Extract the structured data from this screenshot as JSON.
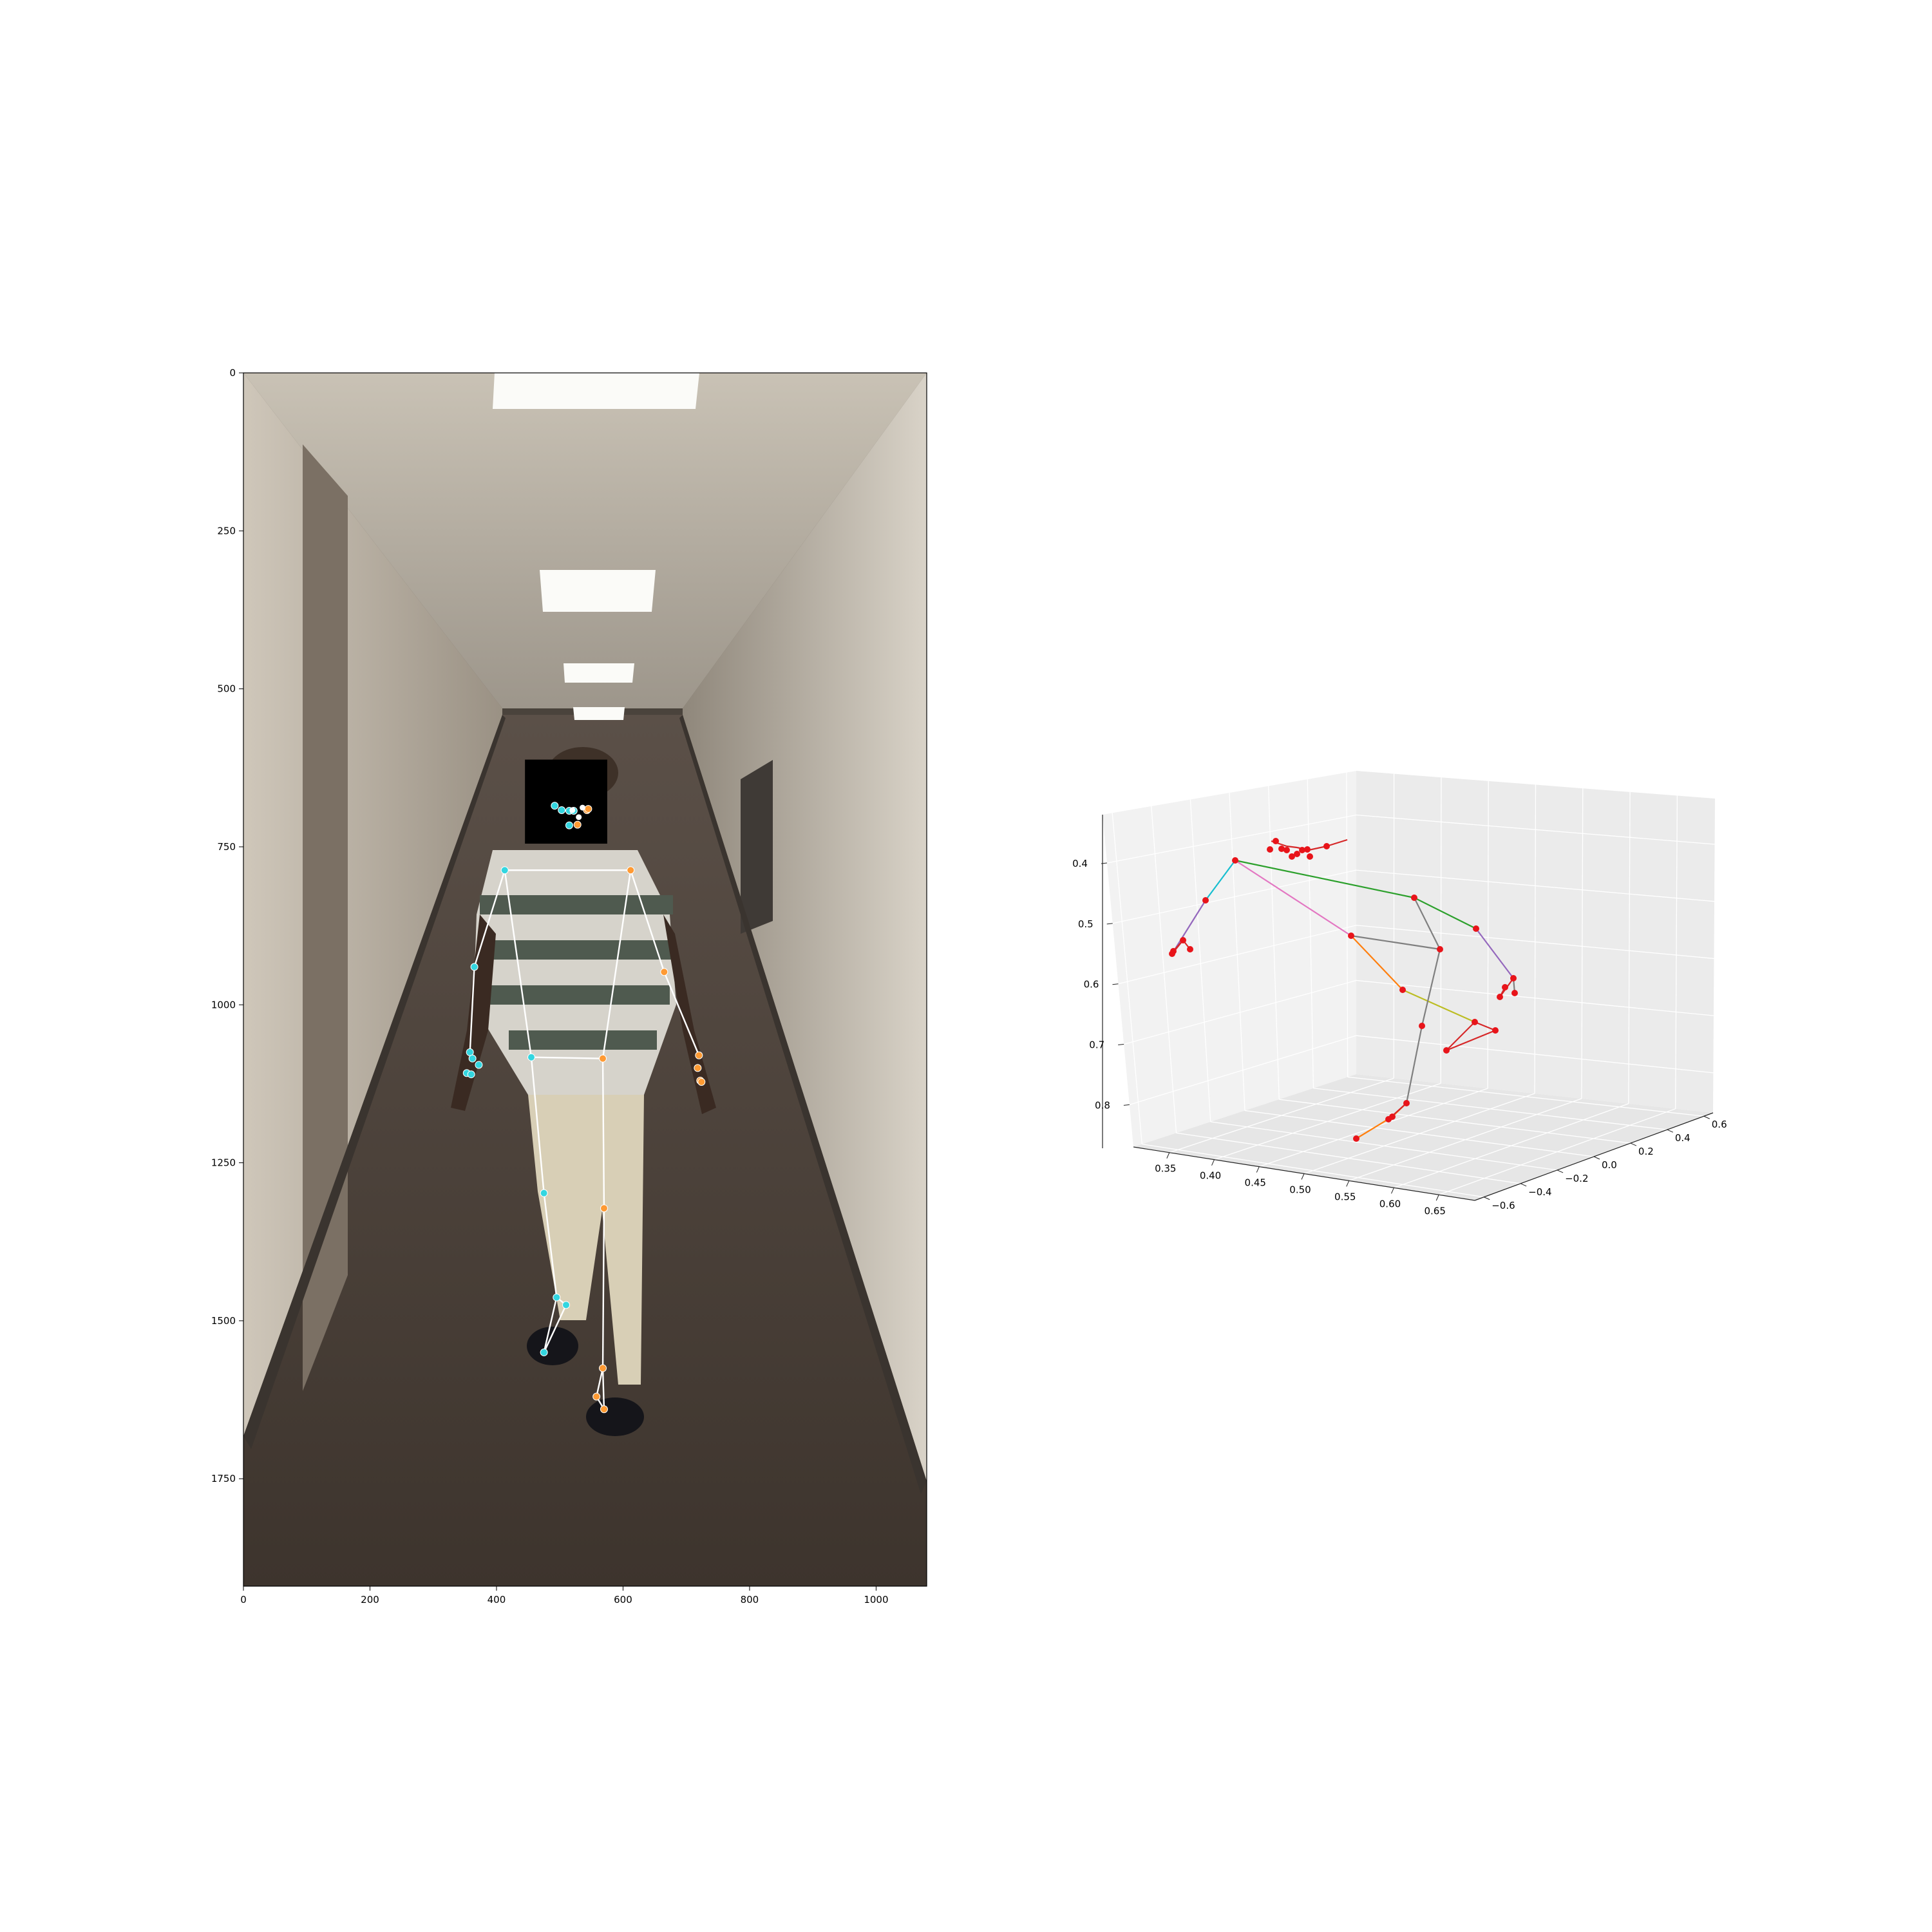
{
  "chart_data": [
    {
      "type": "scatter",
      "xlim": [
        0,
        1080
      ],
      "ylim": [
        1920,
        0
      ],
      "xticks": [
        {
          "value": 0,
          "label": "0"
        },
        {
          "value": 200,
          "label": "200"
        },
        {
          "value": 400,
          "label": "400"
        },
        {
          "value": 600,
          "label": "600"
        },
        {
          "value": 800,
          "label": "800"
        },
        {
          "value": 1000,
          "label": "1000"
        }
      ],
      "yticks": [
        {
          "value": 0,
          "label": "0"
        },
        {
          "value": 250,
          "label": "250"
        },
        {
          "value": 500,
          "label": "500"
        },
        {
          "value": 750,
          "label": "750"
        },
        {
          "value": 1000,
          "label": "1000"
        },
        {
          "value": 1250,
          "label": "1250"
        },
        {
          "value": 1500,
          "label": "1500"
        },
        {
          "value": 1750,
          "label": "1750"
        }
      ],
      "background": "video frame: corridor with a walking person, face redacted by black box",
      "redaction_box": {
        "x": [
          445,
          575
        ],
        "y": [
          612,
          745
        ],
        "color": "#000000"
      },
      "skeleton_color": "#ffffff",
      "left_color": "#33d6e0",
      "right_color": "#ff9a33",
      "joints": {
        "r_shoulder": [
          413,
          787
        ],
        "l_shoulder": [
          612,
          787
        ],
        "r_elbow": [
          365,
          940
        ],
        "l_elbow": [
          665,
          948
        ],
        "r_wrist": [
          358,
          1075
        ],
        "l_wrist": [
          720,
          1080
        ],
        "r_hip": [
          455,
          1083
        ],
        "l_hip": [
          568,
          1085
        ],
        "r_knee": [
          475,
          1298
        ],
        "l_knee": [
          570,
          1322
        ],
        "r_ankle": [
          495,
          1463
        ],
        "l_ankle": [
          568,
          1575
        ],
        "r_heel": [
          475,
          1550
        ],
        "l_heel": [
          558,
          1620
        ],
        "r_toe": [
          510,
          1475
        ],
        "l_toe": [
          570,
          1640
        ]
      },
      "bones": [
        [
          "r_shoulder",
          "l_shoulder"
        ],
        [
          "r_shoulder",
          "r_elbow"
        ],
        [
          "r_elbow",
          "r_wrist"
        ],
        [
          "l_shoulder",
          "l_elbow"
        ],
        [
          "l_elbow",
          "l_wrist"
        ],
        [
          "r_shoulder",
          "r_hip"
        ],
        [
          "l_shoulder",
          "l_hip"
        ],
        [
          "r_hip",
          "l_hip"
        ],
        [
          "r_hip",
          "r_knee"
        ],
        [
          "r_knee",
          "r_ankle"
        ],
        [
          "r_ankle",
          "r_heel"
        ],
        [
          "r_heel",
          "r_toe"
        ],
        [
          "r_ankle",
          "r_toe"
        ],
        [
          "l_hip",
          "l_knee"
        ],
        [
          "l_knee",
          "l_ankle"
        ],
        [
          "l_ankle",
          "l_heel"
        ],
        [
          "l_heel",
          "l_toe"
        ],
        [
          "l_ankle",
          "l_toe"
        ]
      ],
      "left_points": [
        [
          413,
          787
        ],
        [
          365,
          940
        ],
        [
          358,
          1075
        ],
        [
          455,
          1083
        ],
        [
          475,
          1298
        ],
        [
          495,
          1463
        ],
        [
          475,
          1550
        ],
        [
          510,
          1475
        ],
        [
          353,
          1108
        ],
        [
          360,
          1110
        ],
        [
          372,
          1095
        ],
        [
          362,
          1085
        ],
        [
          492,
          685
        ],
        [
          503,
          692
        ],
        [
          515,
          693
        ],
        [
          522,
          693
        ],
        [
          515,
          716
        ]
      ],
      "right_points": [
        [
          612,
          787
        ],
        [
          665,
          948
        ],
        [
          720,
          1080
        ],
        [
          568,
          1085
        ],
        [
          570,
          1322
        ],
        [
          568,
          1575
        ],
        [
          558,
          1620
        ],
        [
          570,
          1640
        ],
        [
          722,
          1120
        ],
        [
          718,
          1100
        ],
        [
          724,
          1122
        ],
        [
          543,
          692
        ],
        [
          545,
          690
        ],
        [
          528,
          715
        ]
      ],
      "face_white_points": [
        [
          530,
          703
        ],
        [
          536,
          688
        ],
        [
          520,
          692
        ]
      ]
    },
    {
      "type": "scatter",
      "subtype": "3d",
      "xlim": [
        0.31,
        0.69
      ],
      "ylim": [
        -0.65,
        0.65
      ],
      "zlim": [
        0.32,
        0.87
      ],
      "zaxis_inverted": true,
      "xticks": [
        "0.35",
        "0.40",
        "0.45",
        "0.50",
        "0.55",
        "0.60",
        "0.65"
      ],
      "yticks": [
        "−0.6",
        "−0.4",
        "−0.2",
        "0.0",
        "0.2",
        "0.4",
        "0.6"
      ],
      "zticks": [
        "0.4",
        "0.5",
        "0.6",
        "0.7",
        "0.8"
      ],
      "marker_color": "#e8141a",
      "pane_color": "#f2f2f2",
      "segments": [
        {
          "from": [
            1918,
            1336
          ],
          "to": [
            2196,
            1394
          ],
          "color": "#2ca02c"
        },
        {
          "from": [
            1918,
            1336
          ],
          "to": [
            1872,
            1398
          ],
          "color": "#17becf"
        },
        {
          "from": [
            1872,
            1398
          ],
          "to": [
            1820,
            1481
          ],
          "color": "#9467bd"
        },
        {
          "from": [
            1820,
            1481
          ],
          "to": [
            1837,
            1460
          ],
          "color": "#d62728"
        },
        {
          "from": [
            1837,
            1460
          ],
          "to": [
            1848,
            1474
          ],
          "color": "#d62728"
        },
        {
          "from": [
            1837,
            1460
          ],
          "to": [
            1822,
            1477
          ],
          "color": "#d62728"
        },
        {
          "from": [
            1918,
            1336
          ],
          "to": [
            2098,
            1453
          ],
          "color": "#e377c2"
        },
        {
          "from": [
            2098,
            1453
          ],
          "to": [
            2178,
            1537
          ],
          "color": "#ff7f0e"
        },
        {
          "from": [
            2178,
            1537
          ],
          "to": [
            2290,
            1587
          ],
          "color": "#bcbd22"
        },
        {
          "from": [
            2290,
            1587
          ],
          "to": [
            2322,
            1600
          ],
          "color": "#d62728"
        },
        {
          "from": [
            2322,
            1600
          ],
          "to": [
            2246,
            1631
          ],
          "color": "#d62728"
        },
        {
          "from": [
            2290,
            1587
          ],
          "to": [
            2246,
            1631
          ],
          "color": "#d62728"
        },
        {
          "from": [
            2098,
            1453
          ],
          "to": [
            2236,
            1474
          ],
          "color": "#7f7f7f"
        },
        {
          "from": [
            2196,
            1394
          ],
          "to": [
            2236,
            1474
          ],
          "color": "#7f7f7f"
        },
        {
          "from": [
            2236,
            1474
          ],
          "to": [
            2208,
            1593
          ],
          "color": "#7f7f7f"
        },
        {
          "from": [
            2208,
            1593
          ],
          "to": [
            2184,
            1713
          ],
          "color": "#7f7f7f"
        },
        {
          "from": [
            2184,
            1713
          ],
          "to": [
            2162,
            1734
          ],
          "color": "#ff7f0e"
        },
        {
          "from": [
            2162,
            1734
          ],
          "to": [
            2106,
            1768
          ],
          "color": "#ff7f0e"
        },
        {
          "from": [
            2184,
            1713
          ],
          "to": [
            2156,
            1738
          ],
          "color": "#d62728"
        },
        {
          "from": [
            2196,
            1394
          ],
          "to": [
            2292,
            1442
          ],
          "color": "#2ca02c"
        },
        {
          "from": [
            2292,
            1442
          ],
          "to": [
            2350,
            1519
          ],
          "color": "#9467bd"
        },
        {
          "from": [
            2350,
            1519
          ],
          "to": [
            2329,
            1548
          ],
          "color": "#d62728"
        },
        {
          "from": [
            2350,
            1519
          ],
          "to": [
            2352,
            1542
          ],
          "color": "#7f7f7f"
        },
        {
          "from": [
            2337,
            1533
          ],
          "to": [
            2329,
            1548
          ],
          "color": "#d62728"
        },
        {
          "from": [
            1974,
            1306
          ],
          "to": [
            1998,
            1314
          ],
          "color": "#d62728"
        },
        {
          "from": [
            1998,
            1314
          ],
          "to": [
            2014,
            1316
          ],
          "color": "#d62728"
        },
        {
          "from": [
            2014,
            1316
          ],
          "to": [
            2032,
            1320
          ],
          "color": "#d62728"
        },
        {
          "from": [
            2032,
            1320
          ],
          "to": [
            2060,
            1314
          ],
          "color": "#d62728"
        },
        {
          "from": [
            2060,
            1314
          ],
          "to": [
            2092,
            1304
          ],
          "color": "#d62728"
        }
      ],
      "points": [
        [
          1918,
          1336
        ],
        [
          2196,
          1394
        ],
        [
          1872,
          1398
        ],
        [
          1820,
          1481
        ],
        [
          1837,
          1460
        ],
        [
          1848,
          1474
        ],
        [
          1822,
          1477
        ],
        [
          2098,
          1453
        ],
        [
          2178,
          1537
        ],
        [
          2290,
          1587
        ],
        [
          2322,
          1600
        ],
        [
          2246,
          1631
        ],
        [
          2236,
          1474
        ],
        [
          2208,
          1593
        ],
        [
          2184,
          1713
        ],
        [
          2162,
          1734
        ],
        [
          2106,
          1768
        ],
        [
          2156,
          1738
        ],
        [
          2292,
          1442
        ],
        [
          2350,
          1519
        ],
        [
          2329,
          1548
        ],
        [
          2352,
          1542
        ],
        [
          2337,
          1533
        ],
        [
          1981,
          1306
        ],
        [
          1972,
          1319
        ],
        [
          1990,
          1318
        ],
        [
          1998,
          1320
        ],
        [
          2006,
          1330
        ],
        [
          2014,
          1326
        ],
        [
          2022,
          1320
        ],
        [
          2030,
          1319
        ],
        [
          2034,
          1330
        ],
        [
          2060,
          1314
        ]
      ]
    }
  ]
}
